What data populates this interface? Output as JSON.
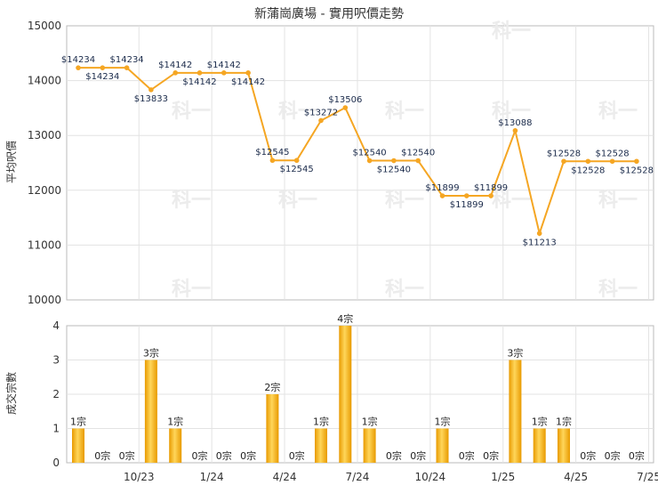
{
  "chart_data": [
    {
      "type": "line",
      "title": "新蒲崗廣場 - 實用呎價走勢",
      "ylabel": "平均呎價",
      "ylim": [
        10000,
        15000
      ],
      "yticks": [
        "10000",
        "11000",
        "12000",
        "13000",
        "14000",
        "15000"
      ],
      "grid": true,
      "color": "#f5a623",
      "values": [
        14234,
        14234,
        14234,
        13833,
        14142,
        14142,
        14142,
        14142,
        12545,
        12545,
        13272,
        13506,
        12540,
        12540,
        12540,
        11899,
        11899,
        11899,
        13088,
        11213,
        12528,
        12528,
        12528,
        12528
      ],
      "labels": [
        "$14234",
        "$14234",
        "$14234",
        "$13833",
        "$14142",
        "$14142",
        "$14142",
        "$14142",
        "$12545",
        "$12545",
        "$13272",
        "$13506",
        "$12540",
        "$12540",
        "$12540",
        "$11899",
        "$11899",
        "$11899",
        "$13088",
        "$11213",
        "$12528",
        "$12528",
        "$12528",
        "$12528"
      ]
    },
    {
      "type": "bar",
      "ylabel": "成交宗數",
      "ylim": [
        0,
        4
      ],
      "yticks": [
        "0",
        "1",
        "2",
        "3",
        "4"
      ],
      "xticks": [
        "10/23",
        "1/24",
        "4/24",
        "7/24",
        "10/24",
        "1/25",
        "4/25",
        "7/25"
      ],
      "grid": true,
      "values": [
        1,
        0,
        0,
        3,
        1,
        0,
        0,
        0,
        2,
        0,
        1,
        4,
        1,
        0,
        0,
        1,
        0,
        0,
        3,
        1,
        1,
        0,
        0,
        0
      ],
      "labels": [
        "1宗",
        "0宗",
        "0宗",
        "3宗",
        "1宗",
        "0宗",
        "0宗",
        "0宗",
        "2宗",
        "0宗",
        "1宗",
        "4宗",
        "1宗",
        "0宗",
        "0宗",
        "1宗",
        "0宗",
        "0宗",
        "3宗",
        "1宗",
        "1宗",
        "0宗",
        "0宗",
        "0宗"
      ]
    }
  ],
  "watermark": "科一"
}
